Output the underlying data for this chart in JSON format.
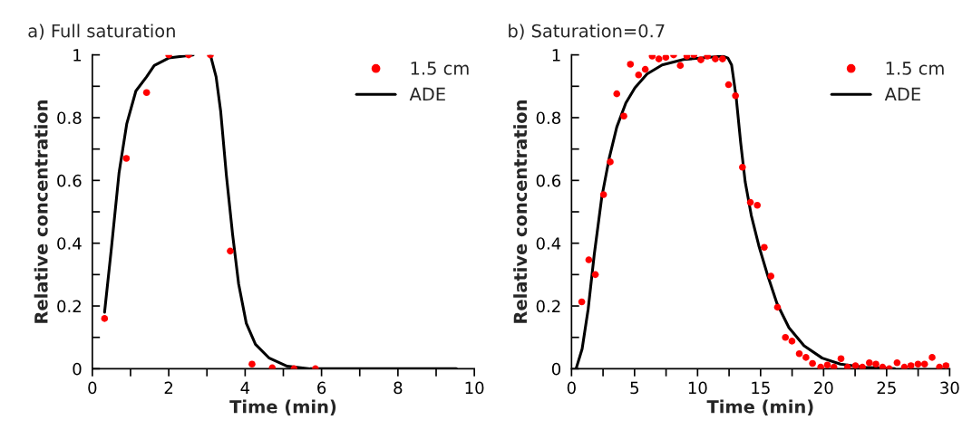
{
  "chart_data": [
    {
      "type": "scatter",
      "title": "a) Full saturation",
      "xlabel": "Time (min)",
      "ylabel": "Relative concentration",
      "xlim": [
        0,
        10
      ],
      "ylim": [
        0,
        1
      ],
      "xticks": [
        0,
        {
          "value": 1,
          "label": null
        },
        2,
        {
          "value": 3,
          "label": null
        },
        4,
        {
          "value": 5,
          "label": null
        },
        6,
        {
          "value": 7,
          "label": null
        },
        8,
        {
          "value": 9,
          "label": null
        },
        10
      ],
      "yticks": [
        0,
        {
          "value": 0.1,
          "label": null
        },
        0.2,
        {
          "value": 0.3,
          "label": null
        },
        0.4,
        {
          "value": 0.5,
          "label": null
        },
        0.6,
        {
          "value": 0.7,
          "label": null
        },
        0.8,
        {
          "value": 0.9,
          "label": null
        },
        1
      ],
      "grid": false,
      "legend": "top right",
      "series": [
        {
          "name": "1.5 cm",
          "type": "scatter",
          "marker": "circle",
          "color": "#ff0000",
          "x": [
            0.32,
            0.89,
            1.42,
            2.0,
            2.52,
            3.09,
            3.61,
            4.18,
            4.71,
            5.28,
            5.84
          ],
          "values": [
            0.16,
            0.67,
            0.88,
            1.0,
            1.0,
            1.0,
            0.375,
            0.015,
            0.003,
            0,
            0
          ]
        },
        {
          "name": "ADE",
          "type": "line",
          "line_style": "solid",
          "color": "#000000",
          "x": [
            0.32,
            0.5,
            0.7,
            0.9,
            1.14,
            1.42,
            1.62,
            2.0,
            2.64,
            2.85,
            3.09,
            3.24,
            3.36,
            3.51,
            3.67,
            3.83,
            4.03,
            4.27,
            4.62,
            5.1,
            5.7,
            9.53
          ],
          "values": [
            0.18,
            0.385,
            0.625,
            0.78,
            0.885,
            0.93,
            0.966,
            0.99,
            1.0,
            null,
            1.0,
            0.93,
            0.82,
            0.615,
            0.43,
            0.27,
            0.145,
            0.078,
            0.035,
            0.008,
            0,
            0
          ]
        }
      ]
    },
    {
      "type": "scatter",
      "title": "b) Saturation=0.7",
      "xlabel": "Time (min)",
      "ylabel": "Relative concentration",
      "xlim": [
        0,
        30
      ],
      "ylim": [
        0,
        1
      ],
      "xticks": [
        0,
        {
          "value": 2.5,
          "label": null
        },
        5,
        {
          "value": 7.5,
          "label": null
        },
        10,
        {
          "value": 12.5,
          "label": null
        },
        15,
        {
          "value": 17.5,
          "label": null
        },
        20,
        {
          "value": 22.5,
          "label": null
        },
        25,
        {
          "value": 27.5,
          "label": null
        },
        30
      ],
      "yticks": [
        0,
        {
          "value": 0.1,
          "label": null
        },
        0.2,
        {
          "value": 0.3,
          "label": null
        },
        0.4,
        {
          "value": 0.5,
          "label": null
        },
        0.6,
        {
          "value": 0.7,
          "label": null
        },
        0.8,
        {
          "value": 0.9,
          "label": null
        },
        1
      ],
      "grid": false,
      "legend": "top right",
      "series": [
        {
          "name": "1.5 cm",
          "type": "scatter",
          "marker": "circle",
          "color": "#ff0000",
          "x": [
            0.81,
            1.37,
            1.89,
            2.54,
            3.07,
            3.59,
            4.15,
            4.67,
            5.32,
            5.85,
            6.4,
            6.93,
            7.48,
            8.1,
            8.63,
            9.15,
            9.71,
            10.26,
            10.78,
            11.41,
            11.98,
            12.46,
            13.01,
            13.56,
            14.19,
            14.74,
            15.29,
            15.82,
            16.34,
            16.97,
            17.49,
            18.07,
            18.6,
            19.12,
            19.77,
            20.3,
            20.82,
            21.38,
            21.9,
            22.53,
            23.08,
            23.63,
            24.15,
            24.68,
            25.21,
            25.83,
            26.41,
            26.93,
            27.49,
            28.01,
            28.61,
            29.19,
            29.71
          ],
          "values": [
            0.213,
            0.347,
            0.3,
            0.555,
            0.659,
            0.876,
            0.805,
            0.97,
            0.936,
            0.954,
            0.996,
            0.987,
            0.992,
            1.0,
            0.966,
            0.996,
            1.0,
            0.984,
            0.996,
            0.987,
            0.987,
            0.905,
            0.87,
            0.642,
            0.53,
            0.521,
            0.387,
            0.295,
            0.196,
            0.1,
            0.088,
            0.048,
            0.036,
            0.017,
            0.005,
            0.012,
            0.005,
            0.032,
            0.005,
            0.01,
            0.005,
            0.019,
            0.015,
            0.005,
            0,
            0.019,
            0.005,
            0.01,
            0.015,
            0.015,
            0.036,
            0.005,
            0.01
          ]
        },
        {
          "name": "ADE",
          "type": "line",
          "line_style": "solid",
          "color": "#000000",
          "x": [
            0.36,
            0.84,
            1.32,
            1.8,
            2.4,
            3.0,
            3.59,
            4.31,
            5.03,
            5.99,
            7.19,
            8.87,
            10.78,
            11.98,
            12.41,
            12.7,
            13.06,
            13.42,
            13.78,
            14.26,
            14.86,
            15.58,
            16.3,
            17.25,
            18.45,
            19.89,
            21.33,
            23.24,
            25.64
          ],
          "values": [
            0,
            0.063,
            0.19,
            0.363,
            0.547,
            0.673,
            0.77,
            0.847,
            0.895,
            0.939,
            0.968,
            0.985,
            0.992,
            0.996,
            0.99,
            0.968,
            0.866,
            0.72,
            0.595,
            0.489,
            0.392,
            0.295,
            0.208,
            0.131,
            0.073,
            0.034,
            0.015,
            0.005,
            0
          ]
        }
      ]
    }
  ]
}
